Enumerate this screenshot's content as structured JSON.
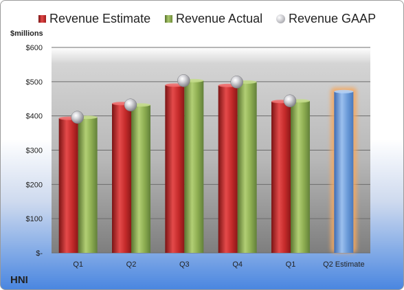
{
  "legend": {
    "estimate": "Revenue Estimate",
    "actual": "Revenue Actual",
    "gaap": "Revenue GAAP"
  },
  "company": "HNI",
  "unit_label": "$millions",
  "colors": {
    "estimate": "#c82828",
    "actual": "#8cac50",
    "gaap": "#b8b8be",
    "forecast": "#6a9ad8",
    "forecast_glow": "#f4a860"
  },
  "chart_data": {
    "type": "bar",
    "categories": [
      "Q1",
      "Q2",
      "Q3",
      "Q4",
      "Q1",
      "Q2 Estimate"
    ],
    "series": [
      {
        "name": "Revenue Estimate",
        "values": [
          393,
          436,
          490,
          489,
          442,
          null
        ]
      },
      {
        "name": "Revenue Actual",
        "values": [
          396,
          432,
          503,
          499,
          444,
          null
        ]
      },
      {
        "name": "Revenue GAAP",
        "values": [
          396,
          432,
          503,
          499,
          444,
          null
        ]
      }
    ],
    "forecast": {
      "category": "Q2 Estimate",
      "value": 471
    },
    "ylabel": "$millions",
    "ylim": [
      0,
      600
    ],
    "yticks": [
      0,
      100,
      200,
      300,
      400,
      500,
      600
    ],
    "ytick_labels": [
      "$-",
      "$100",
      "$200",
      "$300",
      "$400",
      "$500",
      "$600"
    ],
    "grid": true,
    "legend_position": "top"
  }
}
